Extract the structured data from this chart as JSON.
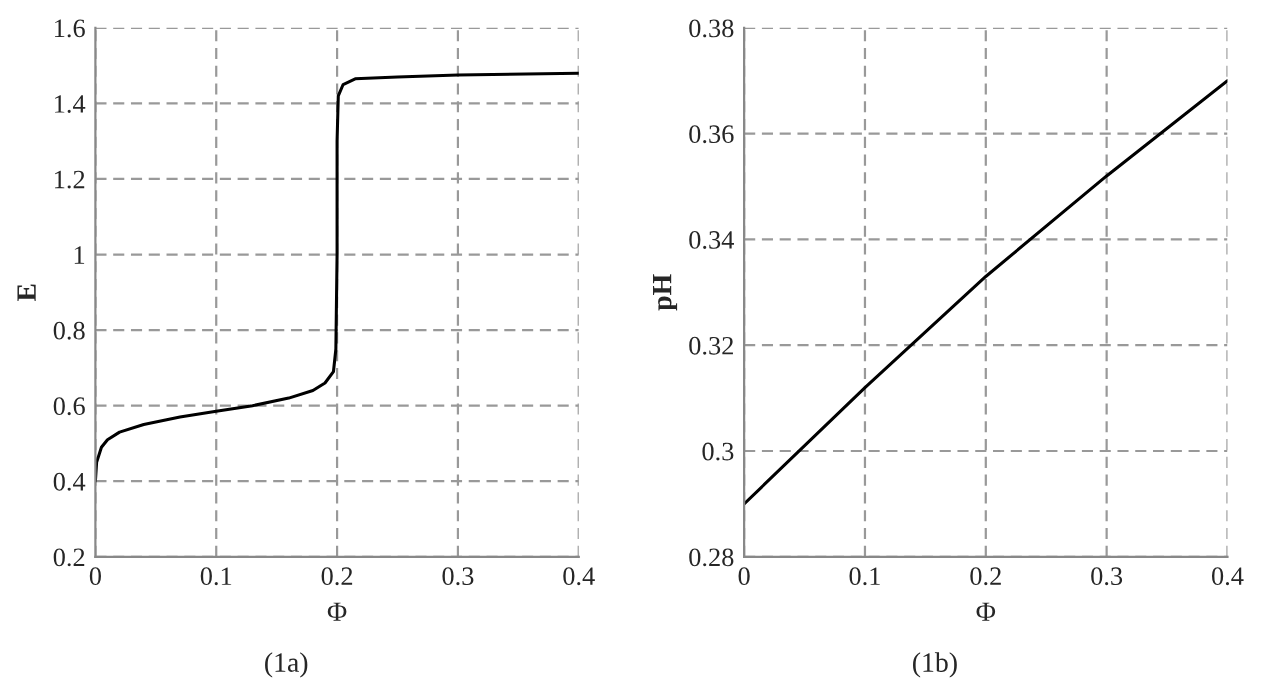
{
  "chart_data": [
    {
      "type": "line",
      "xlabel": "Φ",
      "ylabel": "E",
      "annotations": [
        "(1a)"
      ],
      "xlim": [
        0,
        0.4
      ],
      "ylim": [
        0.2,
        1.6
      ],
      "xticks": [
        0,
        0.1,
        0.2,
        0.3,
        0.4
      ],
      "yticks": [
        0.2,
        0.4,
        0.6,
        0.8,
        1,
        1.2,
        1.4,
        1.6
      ],
      "grid": true,
      "series": [
        {
          "color": "#000000",
          "x": [
            0,
            0.001,
            0.005,
            0.01,
            0.02,
            0.04,
            0.07,
            0.1,
            0.13,
            0.16,
            0.18,
            0.19,
            0.197,
            0.199,
            0.2,
            0.2,
            0.201,
            0.205,
            0.215,
            0.25,
            0.3,
            0.4
          ],
          "values": [
            0.4,
            0.45,
            0.49,
            0.51,
            0.53,
            0.55,
            0.57,
            0.585,
            0.6,
            0.62,
            0.64,
            0.66,
            0.69,
            0.75,
            1.0,
            1.3,
            1.42,
            1.45,
            1.465,
            1.47,
            1.475,
            1.48
          ]
        }
      ]
    },
    {
      "type": "line",
      "xlabel": "Φ",
      "ylabel": "pH",
      "annotations": [
        "(1b)"
      ],
      "xlim": [
        0,
        0.4
      ],
      "ylim": [
        0.28,
        0.38
      ],
      "xticks": [
        0,
        0.1,
        0.2,
        0.3,
        0.4
      ],
      "yticks": [
        0.28,
        0.3,
        0.32,
        0.34,
        0.36,
        0.38
      ],
      "grid": true,
      "series": [
        {
          "color": "#000000",
          "x": [
            0,
            0.1,
            0.2,
            0.3,
            0.4
          ],
          "values": [
            0.29,
            0.312,
            0.333,
            0.352,
            0.37
          ]
        }
      ]
    }
  ]
}
